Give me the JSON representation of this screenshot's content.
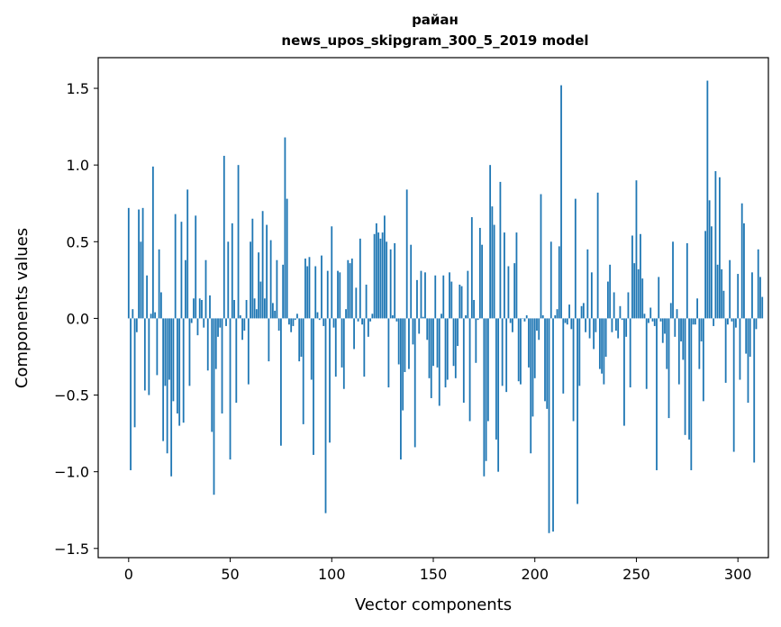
{
  "chart_data": {
    "type": "bar",
    "title": "райан",
    "subtitle": "news_upos_skipgram_300_5_2019 model",
    "xlabel": "Vector components",
    "ylabel": "Components values",
    "xlim": [
      -15,
      315
    ],
    "ylim": [
      -1.56,
      1.7
    ],
    "xticks": [
      0,
      50,
      100,
      150,
      200,
      250,
      300
    ],
    "yticks": [
      -1.5,
      -1.0,
      -0.5,
      0.0,
      0.5,
      1.0,
      1.5
    ],
    "xtick_labels": [
      "0",
      "50",
      "100",
      "150",
      "200",
      "250",
      "300"
    ],
    "ytick_labels": [
      "−1.5",
      "−1.0",
      "−0.5",
      "0.0",
      "0.5",
      "1.0",
      "1.5"
    ],
    "bar_color": "#1f77b4",
    "grid": false,
    "x_start": 0,
    "values": [
      0.72,
      -0.99,
      0.06,
      -0.71,
      -0.09,
      0.71,
      0.5,
      0.72,
      -0.47,
      0.28,
      -0.5,
      0.03,
      0.99,
      0.04,
      -0.37,
      0.45,
      0.17,
      -0.8,
      -0.44,
      -0.88,
      -0.4,
      -1.03,
      -0.54,
      0.68,
      -0.62,
      -0.7,
      0.63,
      -0.68,
      0.38,
      0.84,
      -0.44,
      -0.03,
      0.13,
      0.67,
      -0.11,
      0.13,
      0.12,
      -0.06,
      0.38,
      -0.34,
      0.15,
      -0.74,
      -1.15,
      -0.33,
      -0.12,
      -0.06,
      -0.62,
      1.06,
      -0.05,
      0.5,
      -0.92,
      0.62,
      0.12,
      -0.55,
      1.0,
      0.02,
      -0.14,
      -0.08,
      0.12,
      -0.43,
      0.5,
      0.65,
      0.13,
      0.06,
      0.43,
      0.24,
      0.7,
      0.13,
      0.61,
      -0.28,
      0.51,
      0.1,
      0.05,
      0.38,
      -0.08,
      -0.83,
      0.35,
      1.18,
      0.78,
      -0.04,
      -0.09,
      -0.05,
      -0.01,
      0.03,
      -0.28,
      -0.25,
      -0.69,
      0.39,
      0.34,
      0.4,
      -0.4,
      -0.89,
      0.34,
      0.04,
      -0.01,
      0.41,
      -0.05,
      -1.27,
      0.31,
      -0.81,
      0.6,
      -0.06,
      -0.38,
      0.31,
      0.3,
      -0.32,
      -0.46,
      0.06,
      0.38,
      0.36,
      0.39,
      -0.2,
      0.2,
      -0.02,
      0.52,
      -0.04,
      -0.38,
      0.22,
      -0.12,
      -0.02,
      0.03,
      0.55,
      0.62,
      0.56,
      0.52,
      0.56,
      0.67,
      0.5,
      -0.45,
      0.45,
      0.02,
      0.49,
      -0.02,
      -0.3,
      -0.92,
      -0.6,
      -0.35,
      0.84,
      -0.33,
      0.48,
      -0.17,
      -0.84,
      0.25,
      -0.1,
      0.31,
      0.01,
      0.3,
      -0.14,
      -0.39,
      -0.52,
      -0.31,
      0.28,
      -0.32,
      -0.57,
      0.03,
      0.28,
      -0.45,
      -0.4,
      0.3,
      0.24,
      -0.31,
      -0.39,
      -0.18,
      0.22,
      0.21,
      -0.55,
      0.02,
      0.31,
      -0.67,
      0.66,
      0.12,
      -0.29,
      -0.01,
      0.59,
      0.48,
      -1.03,
      -0.93,
      -0.67,
      1.0,
      0.73,
      0.61,
      -0.79,
      -1.0,
      0.89,
      -0.44,
      0.56,
      -0.48,
      0.34,
      -0.03,
      -0.09,
      0.36,
      0.56,
      -0.41,
      -0.43,
      0.0,
      -0.02,
      0.02,
      -0.32,
      -0.88,
      -0.64,
      -0.39,
      -0.08,
      -0.14,
      0.81,
      0.02,
      -0.54,
      -0.59,
      -1.4,
      0.5,
      -1.39,
      0.02,
      0.06,
      0.47,
      1.52,
      -0.49,
      -0.03,
      -0.04,
      0.09,
      -0.07,
      -0.67,
      0.78,
      -1.21,
      -0.44,
      0.08,
      0.1,
      -0.09,
      0.45,
      -0.13,
      0.3,
      -0.2,
      -0.09,
      0.82,
      -0.33,
      -0.36,
      -0.43,
      -0.25,
      0.24,
      0.35,
      -0.09,
      0.17,
      -0.08,
      -0.13,
      0.08,
      -0.01,
      -0.7,
      -0.12,
      0.17,
      -0.45,
      0.54,
      0.36,
      0.9,
      0.32,
      0.55,
      0.26,
      0.03,
      -0.46,
      -0.03,
      0.07,
      -0.02,
      -0.05,
      -0.99,
      0.27,
      -0.02,
      -0.16,
      -0.1,
      -0.33,
      -0.65,
      0.1,
      0.5,
      -0.12,
      0.06,
      -0.43,
      -0.15,
      -0.27,
      -0.76,
      0.49,
      -0.79,
      -0.99,
      -0.04,
      -0.04,
      0.13,
      -0.33,
      -0.15,
      -0.54,
      0.57,
      1.55,
      0.77,
      0.6,
      -0.05,
      0.96,
      0.35,
      0.92,
      0.32,
      0.18,
      -0.42,
      -0.04,
      0.38,
      -0.02,
      -0.87,
      -0.06,
      0.29,
      -0.4,
      0.75,
      0.62,
      -0.23,
      -0.55,
      -0.25,
      0.3,
      -0.94,
      -0.07,
      0.45,
      0.27,
      0.14
    ]
  }
}
